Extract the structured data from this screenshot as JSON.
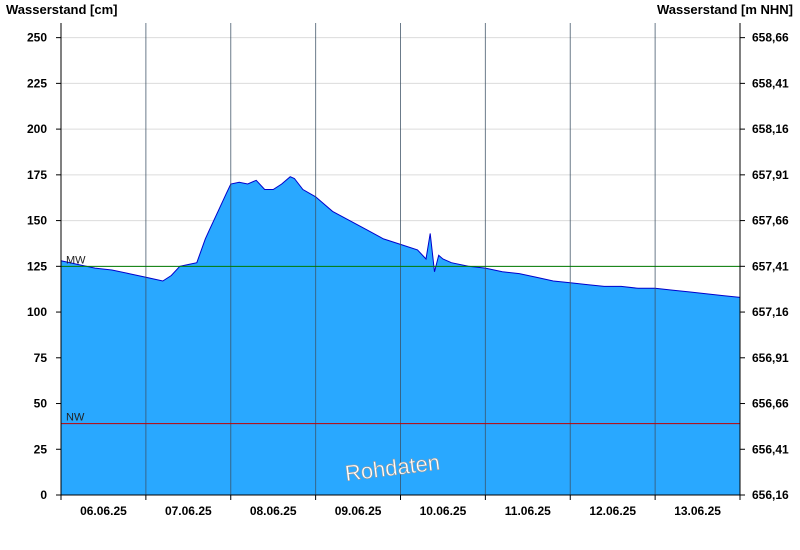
{
  "chart_data": {
    "type": "area",
    "ylabel_left": "Wasserstand [cm]",
    "ylabel_right": "Wasserstand [m NHN]",
    "ylim": [
      0,
      258
    ],
    "y_ticks_left": [
      "0",
      "25",
      "50",
      "75",
      "100",
      "125",
      "150",
      "175",
      "200",
      "225",
      "250"
    ],
    "y_ticks_right": [
      "656,16",
      "656,41",
      "656,66",
      "656,91",
      "657,16",
      "657,41",
      "657,66",
      "657,91",
      "658,16",
      "658,41",
      "658,66"
    ],
    "x_tick_labels": [
      "06.06.25",
      "07.06.25",
      "08.06.25",
      "09.06.25",
      "10.06.25",
      "11.06.25",
      "12.06.25",
      "13.06.25"
    ],
    "x_unit": "days",
    "xlim": [
      0,
      8
    ],
    "reference_lines": [
      {
        "label": "MW",
        "value": 125,
        "color": "#007a00"
      },
      {
        "label": "NW",
        "value": 39,
        "color": "#c00000"
      }
    ],
    "watermark": "Rohdaten",
    "fill_color": "#29a8ff",
    "line_color": "#0000cc",
    "grid": true,
    "series": [
      {
        "x": [
          0,
          0.2,
          0.4,
          0.6,
          0.8,
          1.0,
          1.1,
          1.2,
          1.3,
          1.4,
          1.5,
          1.6,
          1.7,
          1.75,
          1.85,
          1.95,
          2.0,
          2.1,
          2.2,
          2.3,
          2.4,
          2.5,
          2.6,
          2.7,
          2.75,
          2.85,
          3.0,
          3.2,
          3.4,
          3.6,
          3.8,
          4.0,
          4.2,
          4.3,
          4.35,
          4.4,
          4.45,
          4.5,
          4.6,
          4.8,
          5.0,
          5.2,
          5.4,
          5.6,
          5.8,
          6.0,
          6.2,
          6.4,
          6.6,
          6.8,
          7.0,
          7.2,
          7.4,
          7.6,
          7.8,
          8.0
        ],
        "values": [
          128,
          126,
          124,
          123,
          121,
          119,
          118,
          117,
          120,
          125,
          126,
          127,
          140,
          145,
          155,
          165,
          170,
          171,
          170,
          172,
          167,
          167,
          170,
          174,
          173,
          167,
          163,
          155,
          150,
          145,
          140,
          137,
          134,
          129,
          143,
          122,
          131,
          129,
          127,
          125,
          124,
          122,
          121,
          119,
          117,
          116,
          115,
          114,
          114,
          113,
          113,
          112,
          111,
          110,
          109,
          108
        ]
      }
    ]
  }
}
